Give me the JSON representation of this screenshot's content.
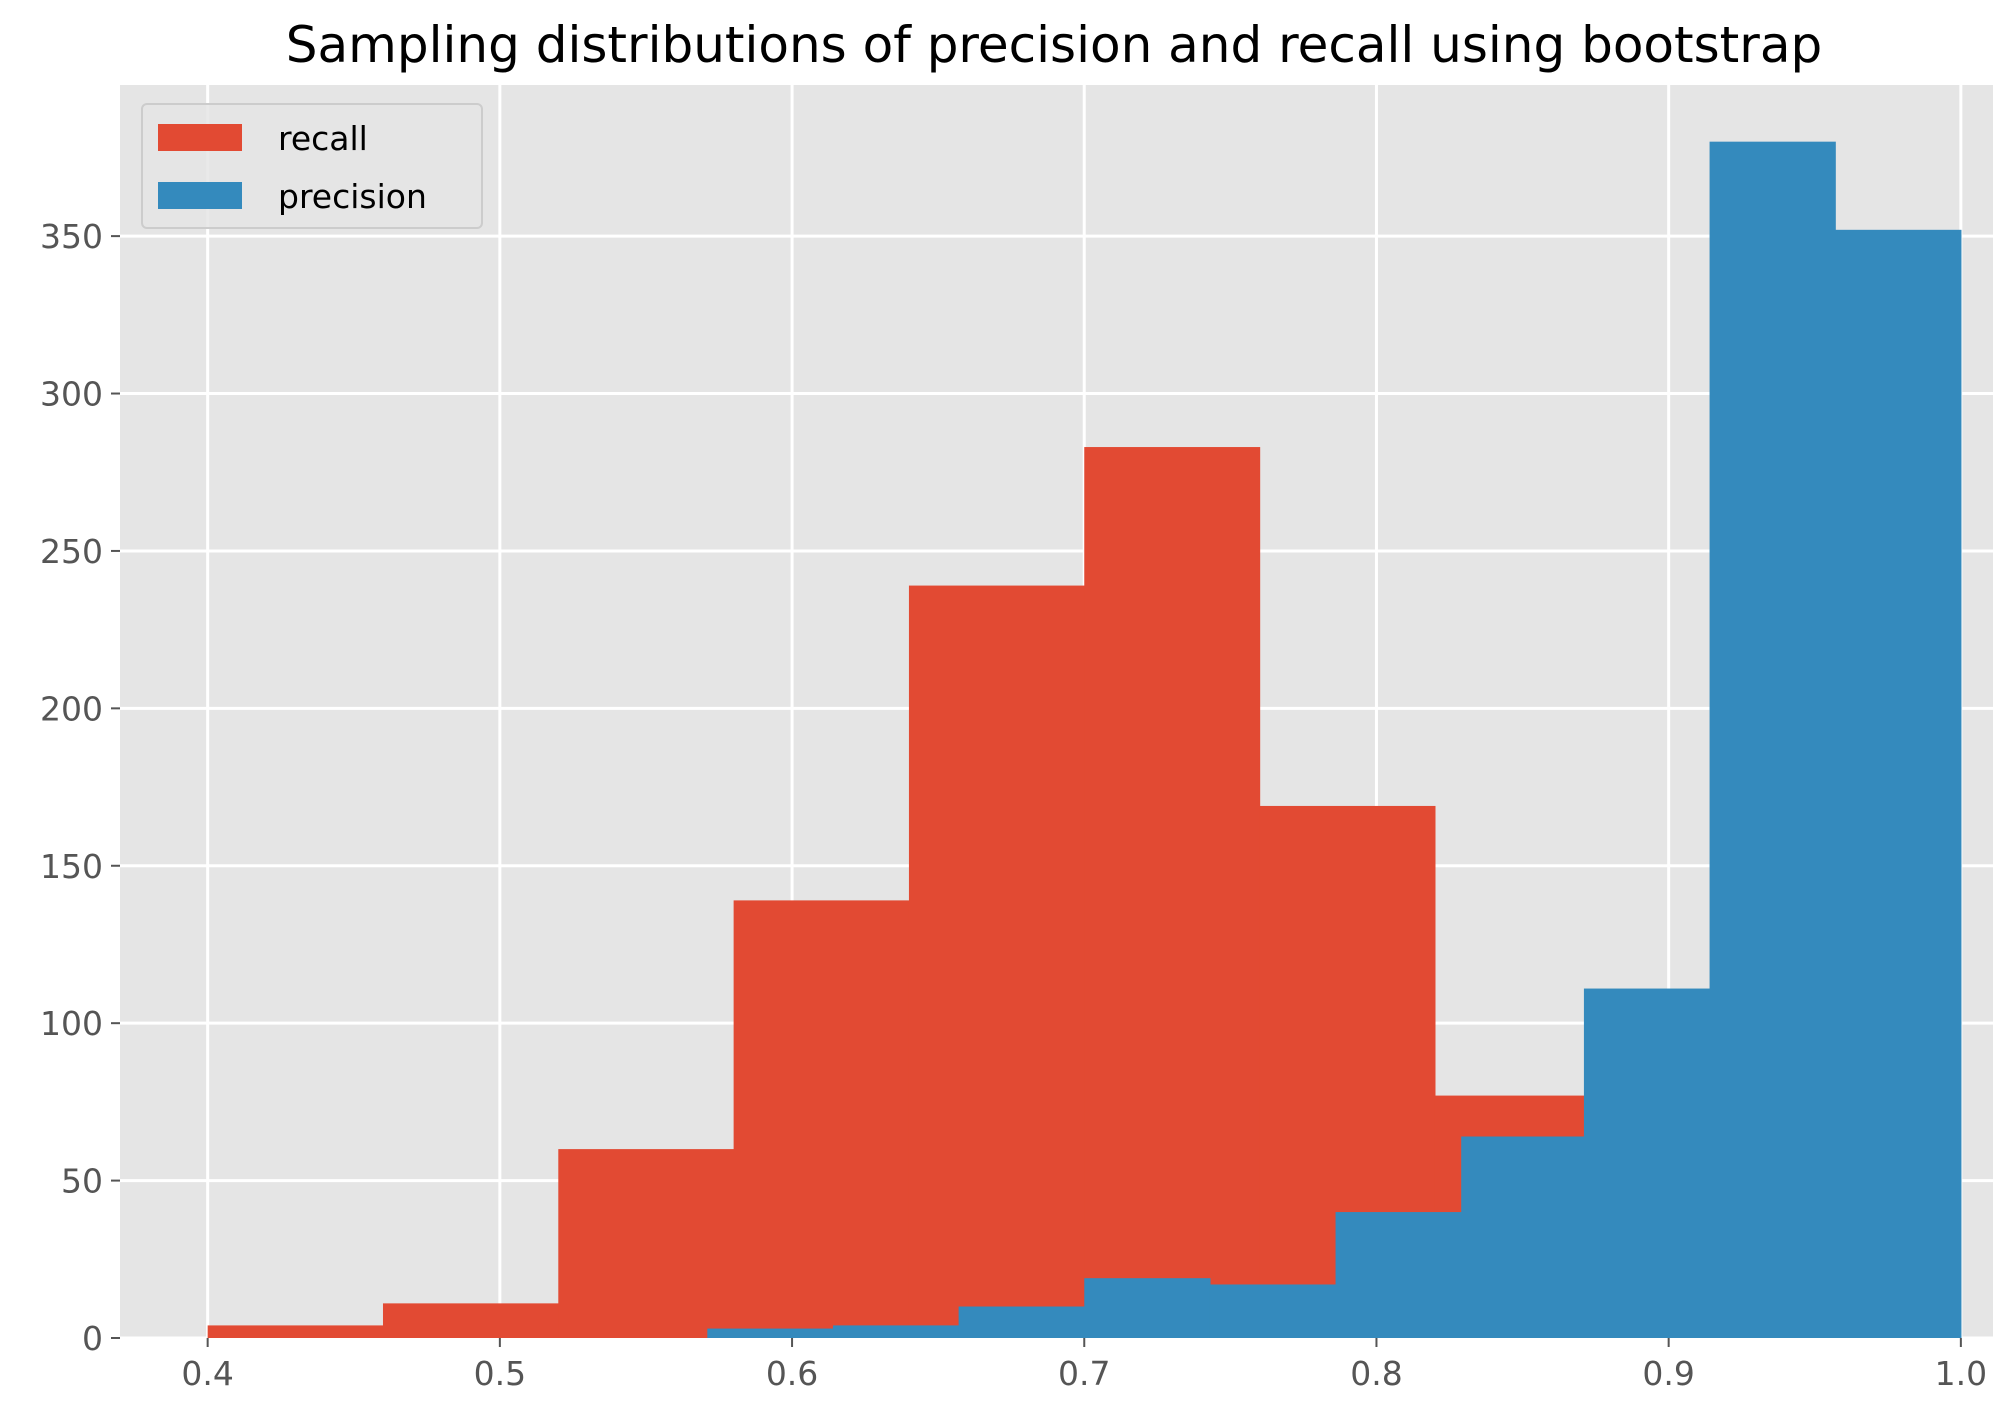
{
  "chart_data": {
    "type": "bar",
    "subtype": "histogram",
    "title": "Sampling distributions of precision and recall using bootstrap",
    "xlabel": "",
    "ylabel": "",
    "xlim": [
      0.37,
      1.011
    ],
    "ylim": [
      0,
      398
    ],
    "x_ticks": [
      "0.4",
      "0.5",
      "0.6",
      "0.7",
      "0.8",
      "0.9",
      "1.0"
    ],
    "y_ticks": [
      "0",
      "50",
      "100",
      "150",
      "200",
      "250",
      "300",
      "350"
    ],
    "grid": true,
    "legend_position": "upper-left",
    "series": [
      {
        "name": "recall",
        "color": "#E24A33",
        "bin_edges": [
          0.4,
          0.46,
          0.52,
          0.58,
          0.64,
          0.7,
          0.76,
          0.82,
          0.88,
          0.94,
          1.0
        ],
        "counts": [
          4,
          11,
          60,
          139,
          239,
          283,
          169,
          77,
          0,
          0
        ]
      },
      {
        "name": "precision",
        "color": "#348ABD",
        "bin_edges": [
          0.571,
          0.614,
          0.657,
          0.7,
          0.743,
          0.786,
          0.829,
          0.871,
          0.914,
          0.957,
          1.0
        ],
        "counts": [
          3,
          4,
          10,
          19,
          17,
          40,
          64,
          111,
          380,
          352
        ]
      }
    ]
  }
}
